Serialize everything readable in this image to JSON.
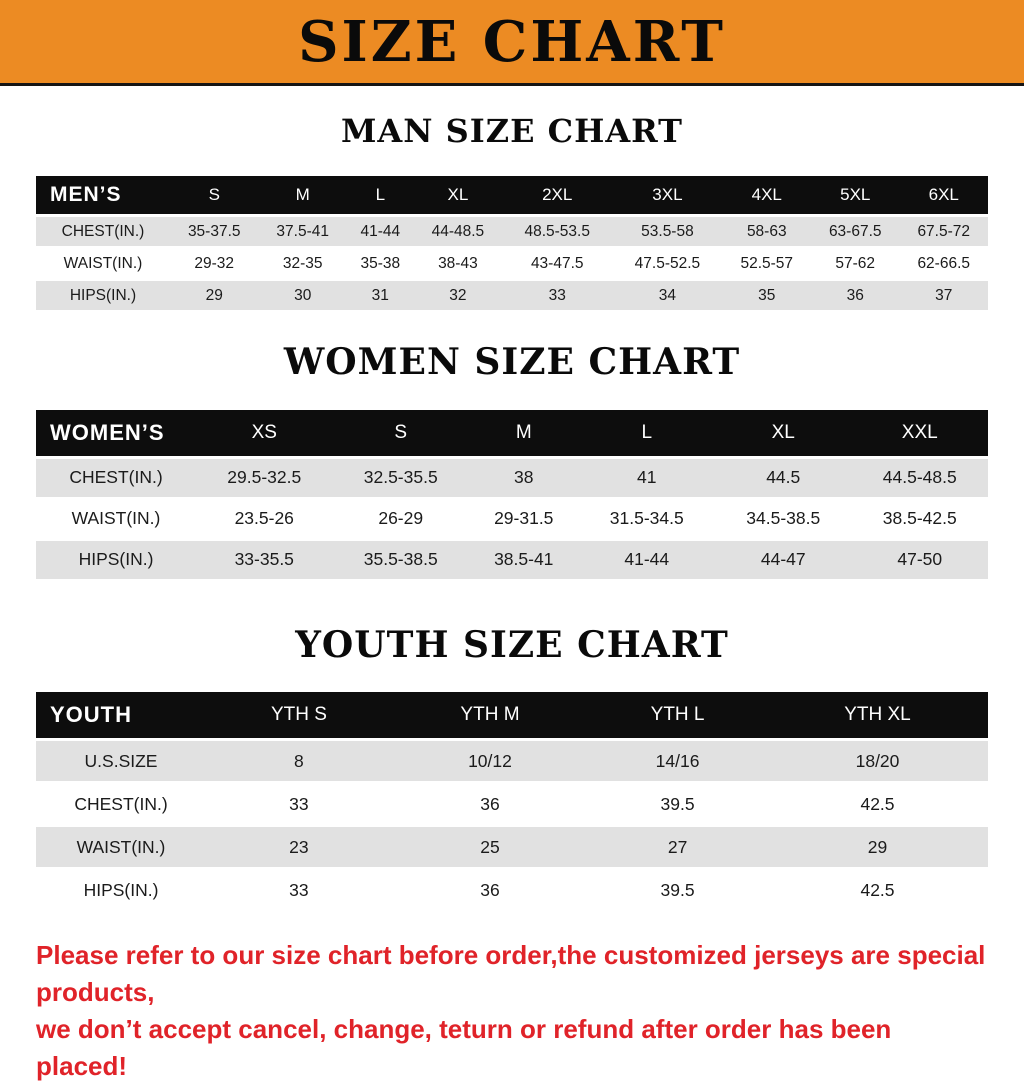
{
  "banner": {
    "title": "SIZE CHART"
  },
  "colors": {
    "banner_orange": "#EC8B23",
    "header_black": "#0D0D0D",
    "row_gray": "#E1E1E1",
    "notice_red": "#E02329"
  },
  "sections": [
    {
      "id": "men",
      "heading": "MAN SIZE CHART",
      "table": {
        "header": [
          "MEN’S",
          "S",
          "M",
          "L",
          "XL",
          "2XL",
          "3XL",
          "4XL",
          "5XL",
          "6XL"
        ],
        "rows": [
          [
            "CHEST(IN.)",
            "35-37.5",
            "37.5-41",
            "41-44",
            "44-48.5",
            "48.5-53.5",
            "53.5-58",
            "58-63",
            "63-67.5",
            "67.5-72"
          ],
          [
            "WAIST(IN.)",
            "29-32",
            "32-35",
            "35-38",
            "38-43",
            "43-47.5",
            "47.5-52.5",
            "52.5-57",
            "57-62",
            "62-66.5"
          ],
          [
            "HIPS(IN.)",
            "29",
            "30",
            "31",
            "32",
            "33",
            "34",
            "35",
            "36",
            "37"
          ]
        ]
      }
    },
    {
      "id": "women",
      "heading": "WOMEN SIZE CHART",
      "table": {
        "header": [
          "WOMEN’S",
          "XS",
          "S",
          "M",
          "L",
          "XL",
          "XXL"
        ],
        "rows": [
          [
            "CHEST(IN.)",
            "29.5-32.5",
            "32.5-35.5",
            "38",
            "41",
            "44.5",
            "44.5-48.5"
          ],
          [
            "WAIST(IN.)",
            "23.5-26",
            "26-29",
            "29-31.5",
            "31.5-34.5",
            "34.5-38.5",
            "38.5-42.5"
          ],
          [
            "HIPS(IN.)",
            "33-35.5",
            "35.5-38.5",
            "38.5-41",
            "41-44",
            "44-47",
            "47-50"
          ]
        ]
      }
    },
    {
      "id": "youth",
      "heading": "YOUTH SIZE CHART",
      "table": {
        "header": [
          "YOUTH",
          "YTH S",
          "YTH M",
          "YTH L",
          "YTH XL"
        ],
        "rows": [
          [
            "U.S.SIZE",
            "8",
            "10/12",
            "14/16",
            "18/20"
          ],
          [
            "CHEST(IN.)",
            "33",
            "36",
            "39.5",
            "42.5"
          ],
          [
            "WAIST(IN.)",
            "23",
            "25",
            "27",
            "29"
          ],
          [
            "HIPS(IN.)",
            "33",
            "36",
            "39.5",
            "42.5"
          ]
        ]
      }
    }
  ],
  "footer": {
    "lines": [
      "Please refer to our size chart before order,the customized jerseys are special products,",
      "we don’t accept cancel, change, teturn or refund after order has been placed!"
    ]
  }
}
